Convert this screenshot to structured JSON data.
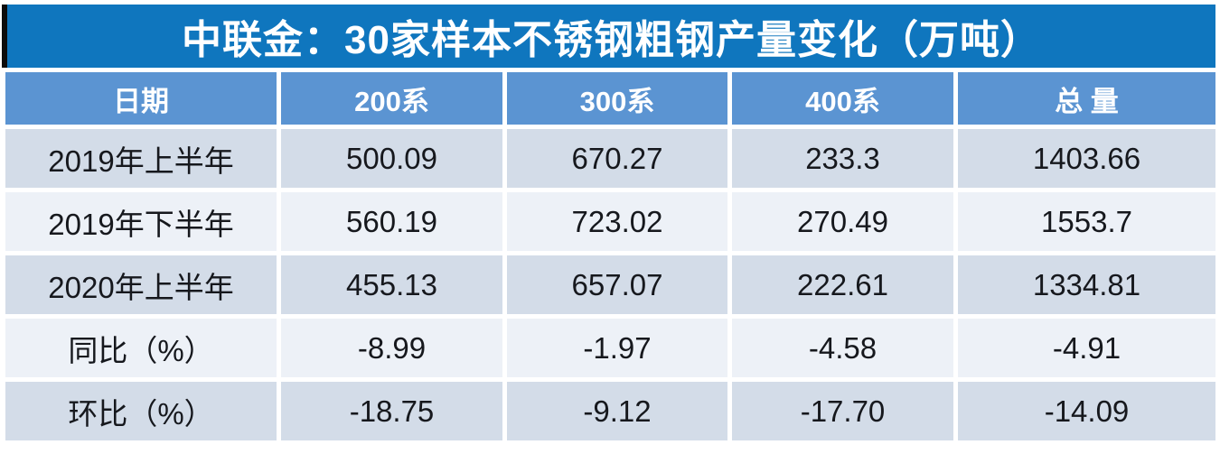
{
  "title": "中联金：30家样本不锈钢粗钢产量变化（万吨）",
  "colors": {
    "title_bg": "#0f76be",
    "header_bg": "#5b94d2",
    "row_odd_bg": "#d3dce8",
    "row_even_bg": "#edf1f7",
    "title_text": "#ffffff",
    "body_text": "#16181d",
    "left_accent_bar": "#0c0c0c"
  },
  "table": {
    "columns": [
      "日期",
      "200系",
      "300系",
      "400系",
      "总 量"
    ],
    "rows": [
      {
        "label": "2019年上半年",
        "values": [
          "500.09",
          "670.27",
          "233.3",
          "1403.66"
        ]
      },
      {
        "label": "2019年下半年",
        "values": [
          "560.19",
          "723.02",
          "270.49",
          "1553.7"
        ]
      },
      {
        "label": "2020年上半年",
        "values": [
          "455.13",
          "657.07",
          "222.61",
          "1334.81"
        ]
      },
      {
        "label": "同比（%）",
        "values": [
          "-8.99",
          "-1.97",
          "-4.58",
          "-4.91"
        ]
      },
      {
        "label": "环比（%）",
        "values": [
          "-18.75",
          "-9.12",
          "-17.70",
          "-14.09"
        ]
      }
    ]
  },
  "chart_data": {
    "type": "table",
    "title": "中联金：30家样本不锈钢粗钢产量变化（万吨）",
    "unit": "万吨",
    "columns": [
      "日期",
      "200系",
      "300系",
      "400系",
      "总量"
    ],
    "rows": [
      [
        "2019年上半年",
        500.09,
        670.27,
        233.3,
        1403.66
      ],
      [
        "2019年下半年",
        560.19,
        723.02,
        270.49,
        1553.7
      ],
      [
        "2020年上半年",
        455.13,
        657.07,
        222.61,
        1334.81
      ],
      [
        "同比（%）",
        -8.99,
        -1.97,
        -4.58,
        -4.91
      ],
      [
        "环比（%）",
        -18.75,
        -9.12,
        -17.7,
        -14.09
      ]
    ]
  }
}
